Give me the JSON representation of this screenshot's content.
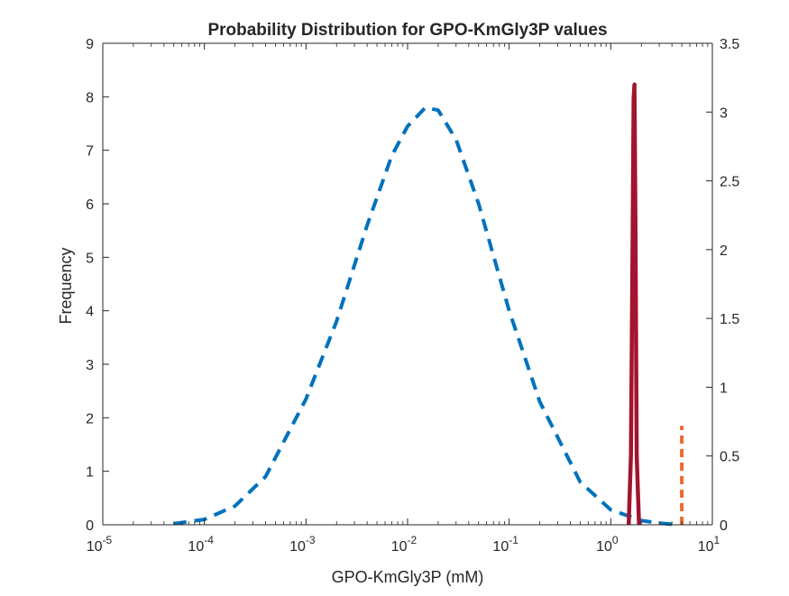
{
  "chart_data": {
    "type": "line",
    "title": "Probability Distribution for GPO-KmGly3P values",
    "xlabel": "GPO-KmGly3P (mM)",
    "ylabel": "Frequency",
    "x_scale": "log",
    "xlim": [
      1e-05,
      10
    ],
    "ylim_left": [
      0,
      9
    ],
    "ylim_right": [
      0,
      3.5
    ],
    "grid": false,
    "legend": "none",
    "x_ticks": [
      {
        "value": 1e-05,
        "base": "10",
        "exp": "-5"
      },
      {
        "value": 0.0001,
        "base": "10",
        "exp": "-4"
      },
      {
        "value": 0.001,
        "base": "10",
        "exp": "-3"
      },
      {
        "value": 0.01,
        "base": "10",
        "exp": "-2"
      },
      {
        "value": 0.1,
        "base": "10",
        "exp": "-1"
      },
      {
        "value": 1,
        "base": "10",
        "exp": "0"
      },
      {
        "value": 10,
        "base": "10",
        "exp": "1"
      }
    ],
    "y_ticks_left": [
      "0",
      "1",
      "2",
      "3",
      "4",
      "5",
      "6",
      "7",
      "8",
      "9"
    ],
    "y_ticks_right": [
      "0",
      "0.5",
      "1",
      "1.5",
      "2",
      "2.5",
      "3",
      "3.5"
    ],
    "series": [
      {
        "axis": "left",
        "style": "dashed",
        "color": "#0072BD",
        "x": [
          5e-05,
          0.0001,
          0.0002,
          0.0004,
          0.001,
          0.002,
          0.004,
          0.007,
          0.01,
          0.015,
          0.02,
          0.03,
          0.05,
          0.1,
          0.2,
          0.5,
          1,
          2,
          3,
          4
        ],
        "y": [
          0.02,
          0.1,
          0.35,
          0.9,
          2.35,
          3.8,
          5.6,
          6.9,
          7.45,
          7.8,
          7.75,
          7.2,
          6.0,
          4.0,
          2.3,
          0.8,
          0.28,
          0.08,
          0.03,
          0.01
        ]
      },
      {
        "axis": "right",
        "style": "solid",
        "color": "#A2142F",
        "x": [
          1.5,
          1.58,
          1.64,
          1.68,
          1.71,
          1.75,
          1.8,
          1.9
        ],
        "y": [
          0,
          0.5,
          2.0,
          3.1,
          3.2,
          2.2,
          0.5,
          0
        ]
      },
      {
        "axis": "left",
        "style": "dashed",
        "color": "#EE6A32",
        "x": [
          5,
          5
        ],
        "y": [
          0,
          1.85
        ]
      }
    ]
  }
}
